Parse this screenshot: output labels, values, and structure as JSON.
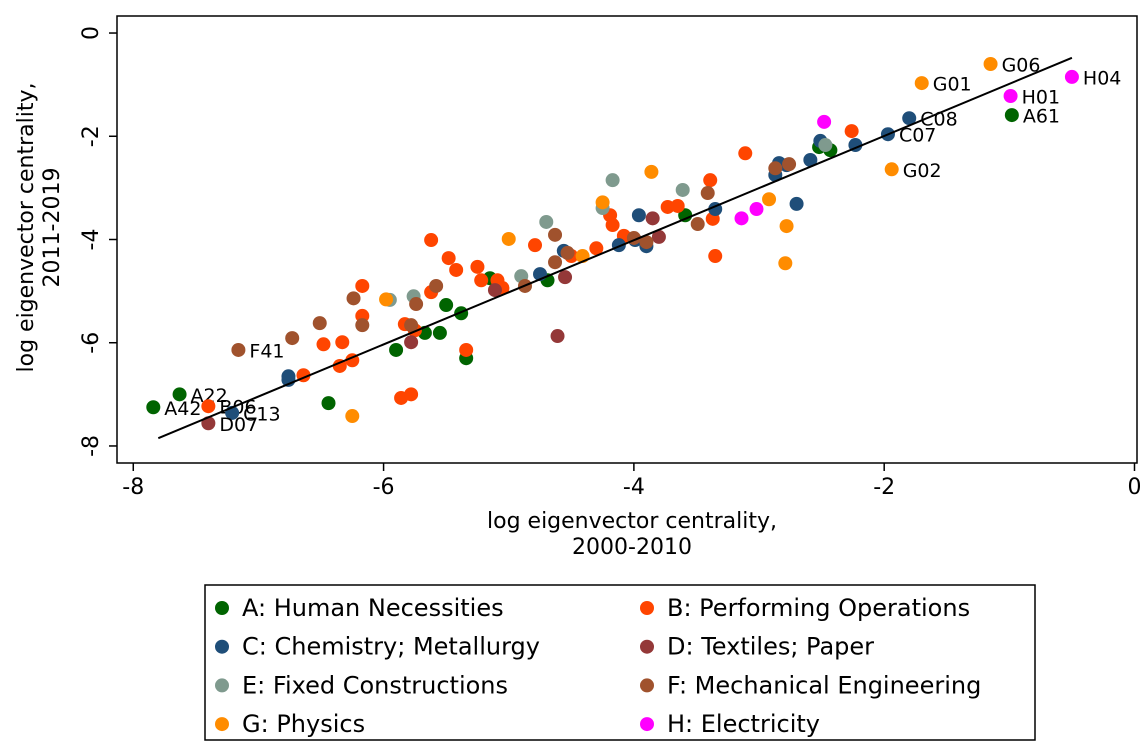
{
  "chart_data": {
    "type": "scatter",
    "xlabel": [
      "log eigenvector centrality,",
      "2000-2010"
    ],
    "ylabel": [
      "log eigenvector centrality,",
      "2011-2019"
    ],
    "xlim": [
      -8.13,
      0.02
    ],
    "ylim": [
      -8.33,
      0.33
    ],
    "xticks": [
      -8,
      -6,
      -4,
      -2,
      0
    ],
    "yticks": [
      0,
      -2,
      -4,
      -6,
      -8
    ],
    "fit_line": {
      "color": "#000000",
      "x": [
        -7.8,
        -0.5
      ],
      "y": [
        -7.85,
        -0.48
      ]
    },
    "series": [
      {
        "name": "A: Human Necessities",
        "color": "#006400",
        "x": [
          -7.84,
          -7.63,
          -0.98,
          -6.44,
          -5.9,
          -5.67,
          -5.55,
          -5.5,
          -5.38,
          -5.34,
          -5.15,
          -4.69,
          -3.59,
          -2.52,
          -2.43
        ],
        "y": [
          -7.25,
          -7.0,
          -1.59,
          -7.17,
          -6.14,
          -5.81,
          -5.81,
          -5.27,
          -5.43,
          -6.3,
          -4.75,
          -4.79,
          -3.53,
          -2.21,
          -2.27
        ],
        "labels": [
          "A42",
          "A22",
          "A61",
          null,
          null,
          null,
          null,
          null,
          null,
          null,
          null,
          null,
          null,
          null,
          null
        ]
      },
      {
        "name": "B: Performing Operations",
        "color": "#ff4500",
        "x": [
          -7.4,
          -6.17,
          -6.17,
          -6.25,
          -6.35,
          -6.33,
          -6.48,
          -6.64,
          -5.86,
          -5.78,
          -5.83,
          -5.75,
          -5.62,
          -5.48,
          -5.42,
          -5.62,
          -5.34,
          -5.25,
          -5.22,
          -5.09,
          -5.05,
          -4.79,
          -4.5,
          -4.3,
          -4.19,
          -4.17,
          -4.08,
          -3.73,
          -3.65,
          -3.39,
          -3.35,
          -3.37,
          -3.11,
          -2.26
        ],
        "y": [
          -7.23,
          -5.48,
          -4.9,
          -6.34,
          -6.45,
          -5.99,
          -6.03,
          -6.63,
          -7.07,
          -7.0,
          -5.64,
          -5.76,
          -4.01,
          -4.36,
          -4.59,
          -5.02,
          -6.14,
          -4.53,
          -4.79,
          -4.79,
          -4.94,
          -4.11,
          -4.32,
          -4.17,
          -3.53,
          -3.72,
          -3.93,
          -3.37,
          -3.35,
          -2.85,
          -4.32,
          -3.6,
          -2.33,
          -1.9
        ],
        "labels": [
          "B06",
          null,
          null,
          null,
          null,
          null,
          null,
          null,
          null,
          null,
          null,
          null,
          null,
          null,
          null,
          null,
          null,
          null,
          null,
          null,
          null,
          null,
          null,
          null,
          null,
          null,
          null,
          null,
          null,
          null,
          null,
          null,
          null,
          null
        ]
      },
      {
        "name": "C: Chemistry; Metallurgy",
        "color": "#1f4e79",
        "x": [
          -7.21,
          -6.76,
          -6.76,
          -4.75,
          -4.56,
          -3.96,
          -4.12,
          -3.99,
          -3.9,
          -3.35,
          -2.87,
          -2.84,
          -2.78,
          -2.7,
          -2.59,
          -2.51,
          -2.23,
          -1.97,
          -1.8
        ],
        "y": [
          -7.36,
          -6.65,
          -6.72,
          -4.67,
          -4.22,
          -3.53,
          -4.11,
          -4.01,
          -4.13,
          -3.41,
          -2.75,
          -2.52,
          -2.56,
          -3.31,
          -2.46,
          -2.09,
          -2.17,
          -1.96,
          -1.65
        ],
        "labels": [
          "C13",
          null,
          null,
          null,
          null,
          null,
          null,
          null,
          null,
          null,
          null,
          null,
          null,
          null,
          null,
          null,
          null,
          "C07",
          "C08"
        ]
      },
      {
        "name": "D: Textiles; Paper",
        "color": "#943838",
        "x": [
          -7.4,
          -5.78,
          -5.11,
          -4.61,
          -4.55,
          -3.85,
          -3.8
        ],
        "y": [
          -7.56,
          -5.99,
          -4.98,
          -5.87,
          -4.73,
          -3.59,
          -3.95
        ],
        "labels": [
          "D07",
          null,
          null,
          null,
          null,
          null,
          null
        ]
      },
      {
        "name": "E: Fixed Constructions",
        "color": "#7f9a8e",
        "x": [
          -5.95,
          -5.76,
          -4.9,
          -4.7,
          -4.25,
          -4.17,
          -3.61,
          -2.47
        ],
        "y": [
          -5.17,
          -5.1,
          -4.71,
          -3.66,
          -3.39,
          -2.85,
          -3.04,
          -2.17
        ],
        "labels": [
          null,
          null,
          null,
          null,
          null,
          null,
          null,
          null
        ]
      },
      {
        "name": "F: Mechanical Engineering",
        "color": "#a0522d",
        "x": [
          -7.16,
          -6.73,
          -6.51,
          -6.24,
          -6.17,
          -5.78,
          -5.74,
          -5.58,
          -4.87,
          -4.63,
          -4.63,
          -4.53,
          -4.0,
          -3.9,
          -3.49,
          -3.41,
          -2.87,
          -2.76
        ],
        "y": [
          -6.14,
          -5.91,
          -5.62,
          -5.14,
          -5.66,
          -5.66,
          -5.25,
          -4.9,
          -4.9,
          -4.44,
          -3.91,
          -4.26,
          -3.97,
          -4.05,
          -3.7,
          -3.1,
          -2.62,
          -2.54
        ],
        "labels": [
          "F41",
          null,
          null,
          null,
          null,
          null,
          null,
          null,
          null,
          null,
          null,
          null,
          null,
          null,
          null,
          null,
          null,
          null
        ]
      },
      {
        "name": "G: Physics",
        "color": "#ff8c00",
        "x": [
          -6.25,
          -5.98,
          -5.0,
          -4.41,
          -4.25,
          -3.86,
          -2.92,
          -2.79,
          -2.78,
          -1.94,
          -1.7,
          -1.15
        ],
        "y": [
          -7.42,
          -5.16,
          -3.99,
          -4.32,
          -3.28,
          -2.69,
          -3.22,
          -4.46,
          -3.74,
          -2.64,
          -0.97,
          -0.6
        ],
        "labels": [
          null,
          null,
          null,
          null,
          null,
          null,
          null,
          null,
          null,
          "G02",
          "G01",
          "G06"
        ]
      },
      {
        "name": "H: Electricity",
        "color": "#ff00ff",
        "x": [
          -3.14,
          -3.02,
          -2.48,
          -0.99,
          -0.5
        ],
        "y": [
          -3.59,
          -3.41,
          -1.72,
          -1.22,
          -0.85
        ],
        "labels": [
          null,
          null,
          null,
          "H01",
          "H04"
        ]
      }
    ]
  }
}
